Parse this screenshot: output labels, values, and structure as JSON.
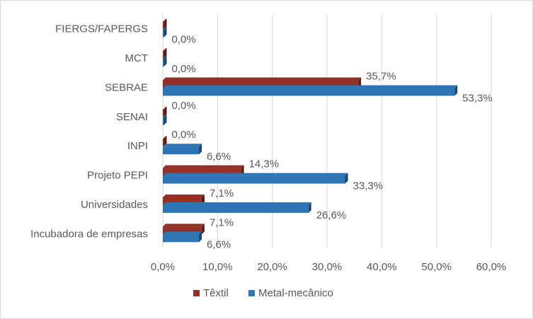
{
  "chart_data": {
    "type": "bar",
    "orientation": "horizontal",
    "categories": [
      "FIERGS/FAPERGS",
      "MCT",
      "SEBRAE",
      "SENAI",
      "INPI",
      "Projeto PEPI",
      "Universidades",
      "Incubadora de empresas"
    ],
    "series": [
      {
        "name": "Têxtil",
        "color": "#943126",
        "values": [
          0.0,
          0.0,
          35.7,
          0.0,
          0.0,
          14.3,
          7.1,
          7.1
        ],
        "labels": [
          "",
          "",
          "35,7%",
          "0,0%",
          "0,0%",
          "14,3%",
          "7,1%",
          "7,1%"
        ]
      },
      {
        "name": "Metal-mecânico",
        "color": "#2e75b6",
        "values": [
          0.0,
          0.0,
          53.3,
          0.0,
          6.6,
          33.3,
          26.6,
          6.6
        ],
        "labels": [
          "0,0%",
          "0,0%",
          "53,3%",
          "",
          "6,6%",
          "33,3%",
          "26,6%",
          "6,6%"
        ]
      }
    ],
    "xlim": [
      0,
      60
    ],
    "x_ticks": [
      0,
      10,
      20,
      30,
      40,
      50,
      60
    ],
    "x_tick_labels": [
      "0,0%",
      "10,0%",
      "20,0%",
      "30,0%",
      "40,0%",
      "50,0%",
      "60,0%"
    ],
    "grid": true,
    "legend_position": "bottom"
  }
}
